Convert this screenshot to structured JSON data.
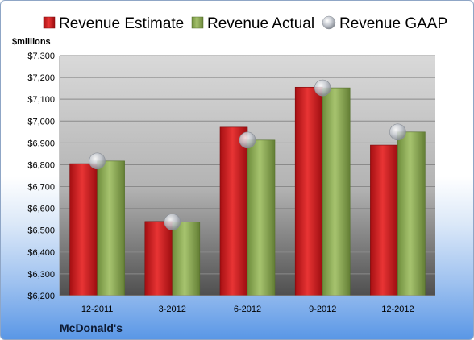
{
  "chart_data": {
    "type": "bar",
    "title": "",
    "ylabel": "$millions",
    "xlabel": "",
    "categories": [
      "12-2011",
      "3-2012",
      "6-2012",
      "9-2012",
      "12-2012"
    ],
    "series": [
      {
        "name": "Revenue Estimate",
        "type": "bar",
        "color": "#d42a2a",
        "values": [
          6805,
          6540,
          6972,
          7155,
          6890
        ]
      },
      {
        "name": "Revenue Actual",
        "type": "bar",
        "color": "#8fac58",
        "values": [
          6817,
          6538,
          6913,
          7152,
          6950
        ]
      },
      {
        "name": "Revenue GAAP",
        "type": "marker",
        "color": "#b8bcc4",
        "values": [
          6817,
          6538,
          6913,
          7152,
          6950
        ]
      }
    ],
    "ylim": [
      6200,
      7300
    ],
    "y_ticks": [
      "$6,200",
      "$6,300",
      "$6,400",
      "$6,500",
      "$6,600",
      "$6,700",
      "$6,800",
      "$6,900",
      "$7,000",
      "$7,100",
      "$7,200",
      "$7,300"
    ],
    "grid": true,
    "legend_position": "top"
  },
  "footer": {
    "company": "McDonald's"
  }
}
